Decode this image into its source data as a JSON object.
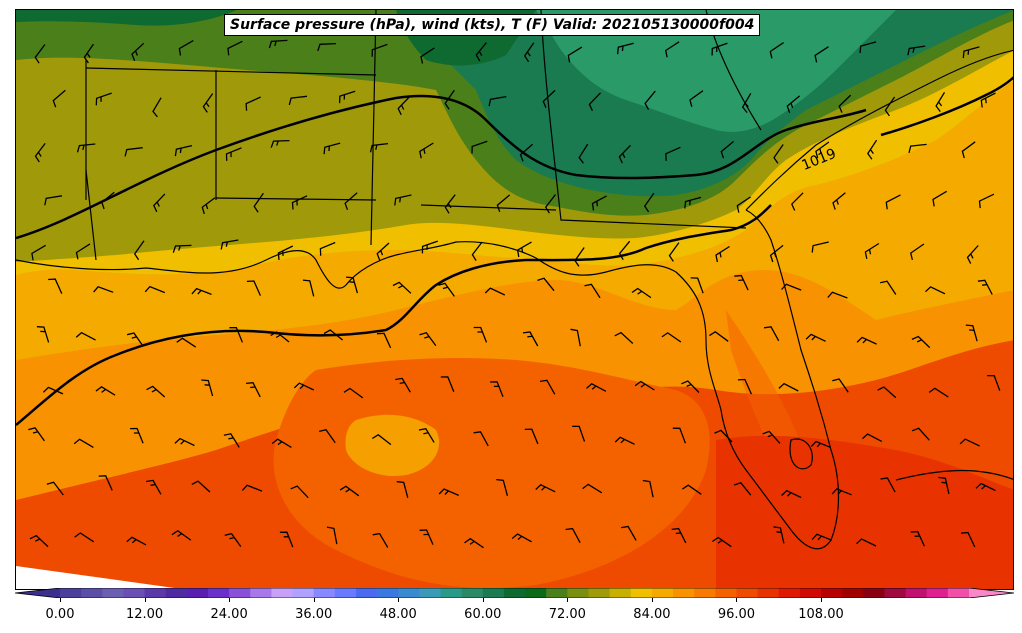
{
  "title": "Surface pressure (hPa), wind (kts), T (F) Valid: 202105130000f004",
  "isobar_label": "1019",
  "colorbar": {
    "tick_labels": [
      "0.00",
      "12.00",
      "24.00",
      "36.00",
      "48.00",
      "60.00",
      "72.00",
      "84.00",
      "96.00",
      "108.00"
    ],
    "range": [
      -6,
      120
    ],
    "step": 3,
    "colors": [
      "#3a2f8f",
      "#4a3f9a",
      "#5a4fa6",
      "#6b5fb2",
      "#6a4fb5",
      "#5a3aa8",
      "#4f2aa0",
      "#5a1fb0",
      "#6a30c8",
      "#8a50d8",
      "#a878e8",
      "#c8a0f8",
      "#b0a0ff",
      "#8888ff",
      "#6a7aff",
      "#4a6af0",
      "#3a7ae0",
      "#3a8ad0",
      "#3a9ab8",
      "#2a9a88",
      "#2a8a68",
      "#1a7a50",
      "#0e6a30",
      "#0a6a18",
      "#4a7f1a",
      "#7a8f10",
      "#a09a0a",
      "#c8b000",
      "#f0c000",
      "#f5aa00",
      "#f89200",
      "#f87a00",
      "#f46200",
      "#ee4a00",
      "#e83200",
      "#e01a00",
      "#d00a00",
      "#b80000",
      "#a00000",
      "#8a0010",
      "#a00840",
      "#c01070",
      "#e02090",
      "#f050a8",
      "#f888c8"
    ]
  },
  "map": {
    "shading_colors": {
      "dark_green": "#0e6a30",
      "green": "#1a7a50",
      "medium_green": "#2a9a68",
      "olive_green": "#4a7f1a",
      "olive": "#a09a0a",
      "yellow": "#f0c000",
      "light_orange": "#f5aa00",
      "orange": "#f89200",
      "dark_orange": "#f46200",
      "red_orange": "#e83200"
    }
  }
}
